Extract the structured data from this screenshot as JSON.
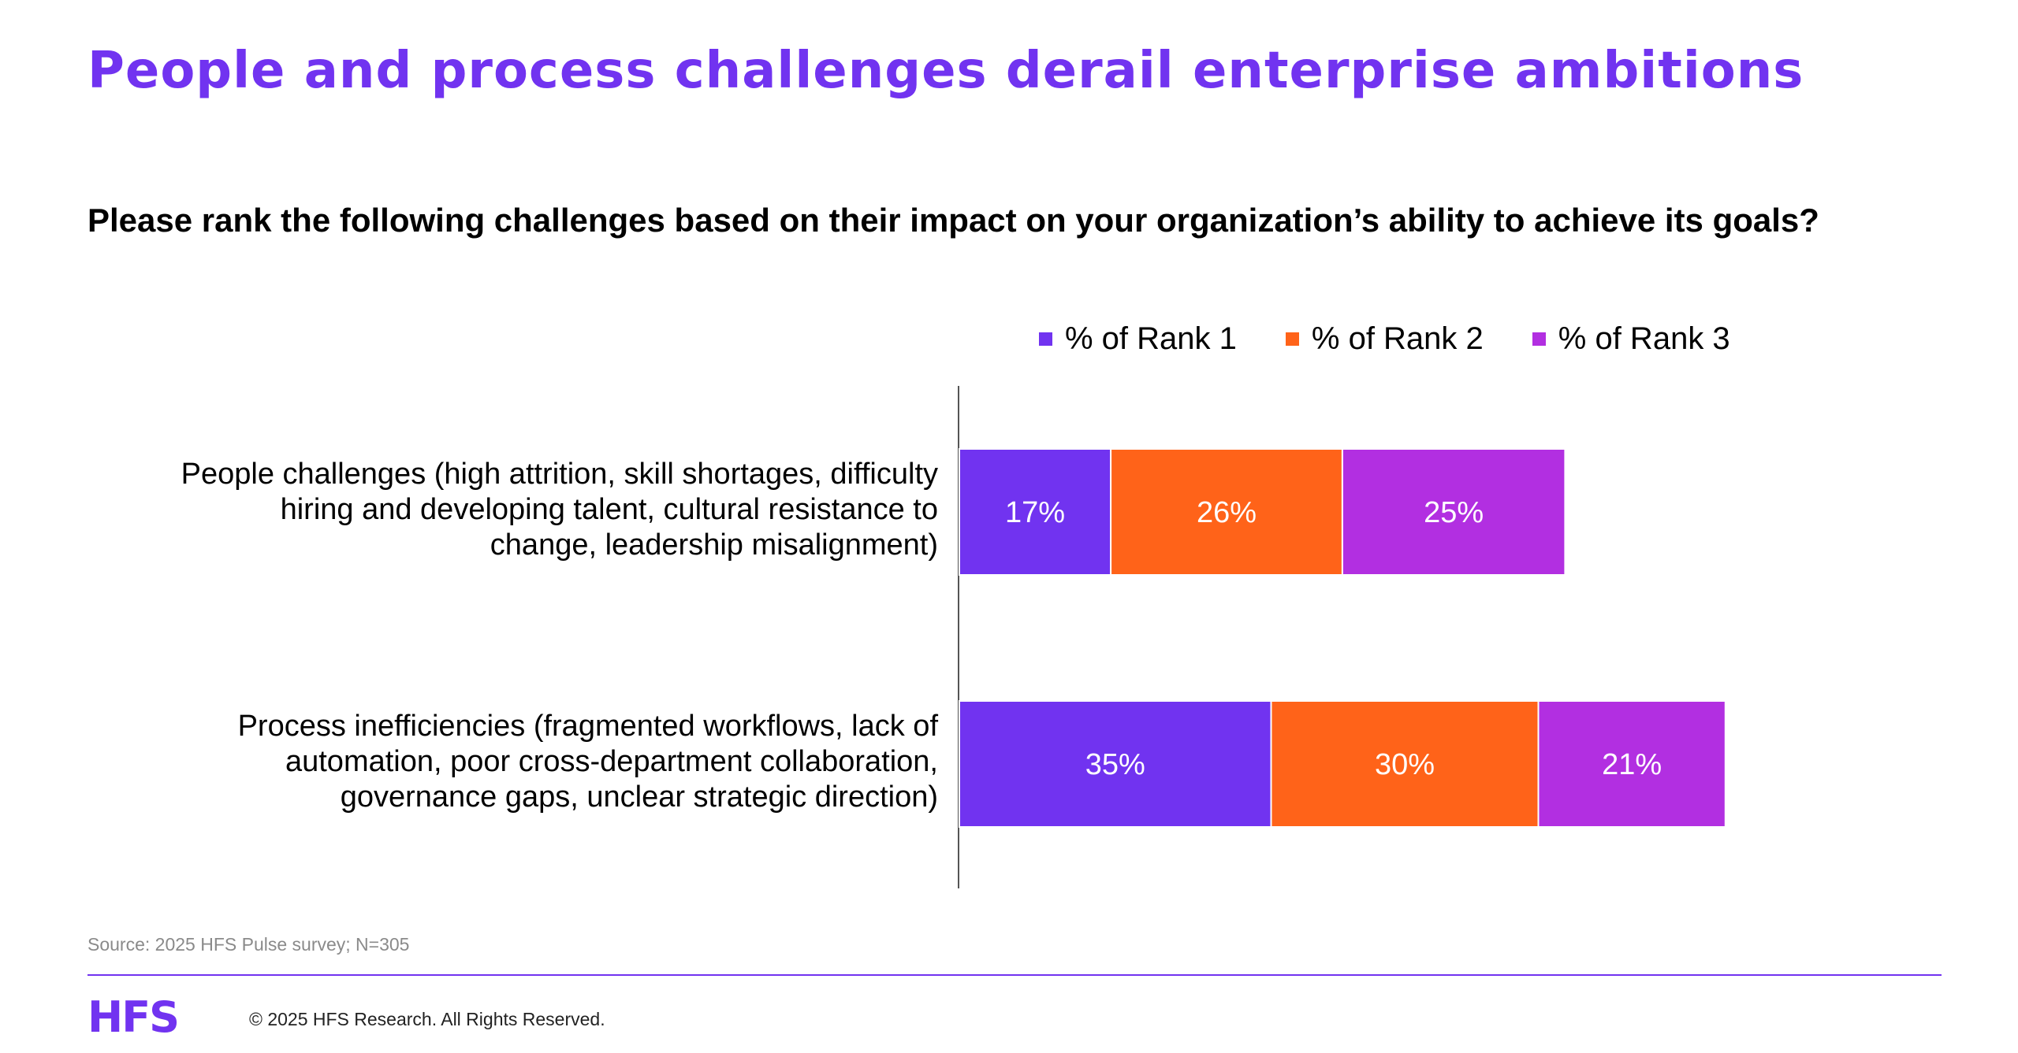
{
  "header": {
    "title": "People and process challenges derail enterprise ambitions",
    "subtitle": "Please rank the following challenges based on their impact on your organization’s ability to achieve its goals?"
  },
  "colors": {
    "accent": "#7133f0",
    "rank1": "#7133f0",
    "rank2": "#ff6319",
    "rank3": "#b22fe1"
  },
  "chart_data": {
    "type": "bar",
    "orientation": "horizontal",
    "stacked": true,
    "categories": [
      "People challenges (high attrition, skill shortages, difficulty hiring and developing talent, cultural resistance to change, leadership misalignment)",
      "Process inefficiencies (fragmented workflows, lack of automation, poor cross-department collaboration, governance gaps, unclear strategic direction)"
    ],
    "series": [
      {
        "name": "% of Rank 1",
        "color": "#7133f0",
        "values": [
          17,
          35
        ],
        "labels": [
          "17%",
          "35%"
        ]
      },
      {
        "name": "% of Rank 2",
        "color": "#ff6319",
        "values": [
          26,
          30
        ],
        "labels": [
          "26%",
          "30%"
        ]
      },
      {
        "name": "% of Rank 3",
        "color": "#b22fe1",
        "values": [
          25,
          21
        ],
        "labels": [
          "25%",
          "21%"
        ]
      }
    ],
    "xlim": [
      0,
      100
    ],
    "legend_position": "top-right",
    "grid": false
  },
  "footer": {
    "source": "Source: 2025 HFS Pulse survey; N=305",
    "logo": "HFS",
    "copyright": "© 2025 HFS Research. All Rights Reserved."
  }
}
